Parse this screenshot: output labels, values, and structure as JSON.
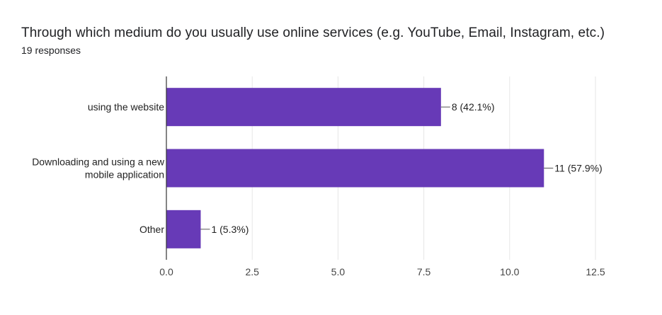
{
  "title": "Through which medium do you usually use online services (e.g. YouTube, Email, Instagram, etc.)",
  "subtitle": "19 responses",
  "chart_data": {
    "type": "bar",
    "orientation": "horizontal",
    "categories": [
      [
        "using the website"
      ],
      [
        "Downloading and using a new",
        "mobile application"
      ],
      [
        "Other"
      ]
    ],
    "values": [
      8,
      11,
      1
    ],
    "data_labels": [
      "8 (42.1%)",
      "11 (57.9%)",
      "1 (5.3%)"
    ],
    "xlim": [
      0,
      12.5
    ],
    "xticks": [
      0,
      2.5,
      5,
      7.5,
      10,
      12.5
    ],
    "xtick_labels": [
      "0.0",
      "2.5",
      "5.0",
      "7.5",
      "10.0",
      "12.5"
    ],
    "grid": true,
    "bar_color": "#673ab7",
    "grid_color": "#e6e6e6",
    "axis_color": "#333333"
  }
}
